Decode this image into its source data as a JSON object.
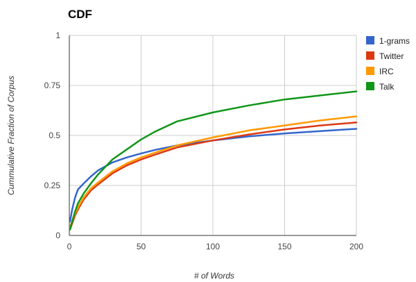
{
  "chart_data": {
    "type": "line",
    "title": "CDF",
    "xlabel": "# of Words",
    "ylabel": "Cummulative Fraction of Corpus",
    "xlim": [
      0,
      200
    ],
    "ylim": [
      0,
      1
    ],
    "x_ticks": [
      0,
      50,
      100,
      150,
      200
    ],
    "y_ticks": [
      0,
      0.25,
      0.5,
      0.75,
      1
    ],
    "y_tick_labels": [
      "0",
      "0.25",
      "0.5",
      "0.75",
      "1"
    ],
    "grid": true,
    "legend_position": "right",
    "series": [
      {
        "name": "1-grams",
        "color": "#3366cc",
        "points": [
          [
            0.5,
            0.07
          ],
          [
            2,
            0.13
          ],
          [
            4,
            0.19
          ],
          [
            6,
            0.23
          ],
          [
            10,
            0.26
          ],
          [
            15,
            0.295
          ],
          [
            20,
            0.325
          ],
          [
            30,
            0.365
          ],
          [
            40,
            0.39
          ],
          [
            50,
            0.41
          ],
          [
            60,
            0.428
          ],
          [
            75,
            0.45
          ],
          [
            100,
            0.475
          ],
          [
            125,
            0.495
          ],
          [
            150,
            0.51
          ],
          [
            175,
            0.522
          ],
          [
            200,
            0.533
          ]
        ]
      },
      {
        "name": "Twitter",
        "color": "#dc3912",
        "points": [
          [
            0.5,
            0.03
          ],
          [
            2,
            0.06
          ],
          [
            4,
            0.1
          ],
          [
            6,
            0.13
          ],
          [
            10,
            0.18
          ],
          [
            15,
            0.225
          ],
          [
            20,
            0.255
          ],
          [
            30,
            0.31
          ],
          [
            40,
            0.35
          ],
          [
            50,
            0.38
          ],
          [
            60,
            0.405
          ],
          [
            75,
            0.44
          ],
          [
            100,
            0.475
          ],
          [
            125,
            0.505
          ],
          [
            150,
            0.53
          ],
          [
            175,
            0.55
          ],
          [
            200,
            0.565
          ]
        ]
      },
      {
        "name": "IRC",
        "color": "#ff9900",
        "points": [
          [
            0.5,
            0.04
          ],
          [
            2,
            0.07
          ],
          [
            4,
            0.11
          ],
          [
            6,
            0.14
          ],
          [
            10,
            0.19
          ],
          [
            15,
            0.235
          ],
          [
            20,
            0.265
          ],
          [
            30,
            0.32
          ],
          [
            40,
            0.36
          ],
          [
            50,
            0.39
          ],
          [
            60,
            0.415
          ],
          [
            75,
            0.45
          ],
          [
            100,
            0.49
          ],
          [
            125,
            0.525
          ],
          [
            150,
            0.55
          ],
          [
            175,
            0.575
          ],
          [
            200,
            0.595
          ]
        ]
      },
      {
        "name": "Talk",
        "color": "#109618",
        "points": [
          [
            0.5,
            0.03
          ],
          [
            2,
            0.07
          ],
          [
            4,
            0.12
          ],
          [
            6,
            0.16
          ],
          [
            10,
            0.21
          ],
          [
            15,
            0.26
          ],
          [
            20,
            0.305
          ],
          [
            30,
            0.38
          ],
          [
            40,
            0.43
          ],
          [
            50,
            0.48
          ],
          [
            60,
            0.52
          ],
          [
            75,
            0.57
          ],
          [
            100,
            0.615
          ],
          [
            125,
            0.65
          ],
          [
            150,
            0.68
          ],
          [
            175,
            0.7
          ],
          [
            200,
            0.72
          ]
        ]
      }
    ]
  }
}
